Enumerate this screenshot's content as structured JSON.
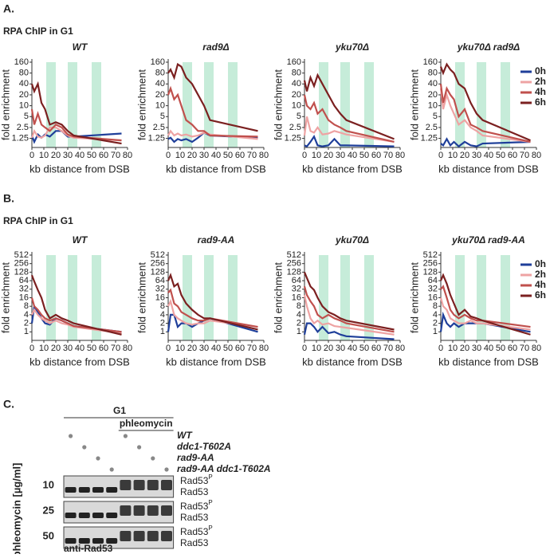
{
  "figure": {
    "panel_a": {
      "label": "A.",
      "heading": "RPA ChIP in G1"
    },
    "panel_b": {
      "label": "B.",
      "heading": "RPA ChIP in G1"
    },
    "panel_c": {
      "label": "C."
    }
  },
  "chart_data": [
    {
      "type": "line",
      "title": "WT",
      "xlabel": "kb distance from DSB",
      "ylabel": "fold enrichment",
      "log_y": true,
      "ylim": [
        0.7,
        160
      ],
      "yticks": [
        1.25,
        2.5,
        5,
        10,
        20,
        40,
        80,
        160
      ],
      "xlim": [
        0,
        80
      ],
      "xticks": [
        0,
        10,
        20,
        30,
        40,
        50,
        60,
        70,
        80
      ],
      "shaded_x": [
        [
          12,
          20
        ],
        [
          30,
          38
        ],
        [
          50,
          58
        ]
      ],
      "x": [
        0,
        2,
        5,
        8,
        11,
        15,
        20,
        25,
        30,
        35,
        75
      ],
      "series": [
        {
          "color": "#1f3f9a",
          "values": [
            1.5,
            1.0,
            1.6,
            1.3,
            1.6,
            1.4,
            2.0,
            2.0,
            1.4,
            1.4,
            1.7
          ]
        },
        {
          "color": "#eea3a3",
          "values": [
            1.3,
            2.0,
            1.4,
            1.3,
            1.5,
            2.5,
            2.5,
            2.0,
            1.5,
            1.3,
            1.1
          ]
        },
        {
          "color": "#c0504d",
          "values": [
            8,
            3,
            6,
            3,
            2.5,
            2.0,
            3.0,
            2.5,
            1.6,
            1.4,
            1.1
          ]
        },
        {
          "color": "#7b2020",
          "values": [
            40,
            25,
            40,
            12,
            8,
            3,
            3.5,
            3,
            2,
            1.5,
            0.9
          ]
        }
      ]
    },
    {
      "type": "line",
      "title": "rad9Δ",
      "xlabel": "kb distance from DSB",
      "ylabel": "fold enrichment",
      "log_y": true,
      "ylim": [
        0.7,
        160
      ],
      "yticks": [
        1.25,
        2.5,
        5,
        10,
        20,
        40,
        80,
        160
      ],
      "xlim": [
        0,
        80
      ],
      "xticks": [
        0,
        10,
        20,
        30,
        40,
        50,
        60,
        70,
        80
      ],
      "shaded_x": [
        [
          12,
          20
        ],
        [
          30,
          38
        ],
        [
          50,
          58
        ]
      ],
      "x": [
        0,
        2,
        5,
        8,
        11,
        15,
        20,
        25,
        30,
        35,
        75
      ],
      "series": [
        {
          "color": "#1f3f9a",
          "values": [
            1.2,
            1.3,
            1.0,
            1.2,
            1.1,
            1.2,
            1.0,
            1.3,
            1.8,
            1.5,
            1.3
          ]
        },
        {
          "color": "#eea3a3",
          "values": [
            1.5,
            2,
            1.5,
            1.7,
            1.5,
            1.6,
            1.4,
            1.5,
            1.8,
            1.6,
            1.2
          ]
        },
        {
          "color": "#c0504d",
          "values": [
            20,
            30,
            15,
            20,
            10,
            4,
            3,
            2,
            2,
            1.5,
            1.4
          ]
        },
        {
          "color": "#7b2020",
          "values": [
            80,
            100,
            60,
            140,
            120,
            60,
            40,
            20,
            10,
            4,
            2
          ]
        }
      ]
    },
    {
      "type": "line",
      "title": "yku70Δ",
      "xlabel": "kb distance from DSB",
      "ylabel": "fold enrichment",
      "log_y": true,
      "ylim": [
        0.7,
        160
      ],
      "yticks": [
        1.25,
        2.5,
        5,
        10,
        20,
        40,
        80,
        160
      ],
      "xlim": [
        0,
        80
      ],
      "xticks": [
        0,
        10,
        20,
        30,
        40,
        50,
        60,
        70,
        80
      ],
      "shaded_x": [
        [
          12,
          20
        ],
        [
          30,
          38
        ],
        [
          50,
          58
        ]
      ],
      "x": [
        0,
        2,
        5,
        8,
        11,
        15,
        20,
        25,
        30,
        35,
        75
      ],
      "series": [
        {
          "color": "#1f3f9a",
          "values": [
            0.8,
            0.75,
            1.0,
            1.4,
            0.8,
            0.75,
            0.8,
            1.2,
            0.8,
            0.8,
            0.75
          ]
        },
        {
          "color": "#eea3a3",
          "values": [
            1.5,
            5,
            2,
            1.8,
            2.5,
            1.6,
            1.7,
            2,
            1.8,
            1.6,
            1.0
          ]
        },
        {
          "color": "#c0504d",
          "values": [
            20,
            10,
            8,
            12,
            6,
            8,
            4,
            3,
            2.5,
            2,
            1.0
          ]
        },
        {
          "color": "#7b2020",
          "values": [
            50,
            25,
            60,
            35,
            70,
            40,
            20,
            10,
            6,
            4,
            1.2
          ]
        }
      ]
    },
    {
      "type": "line",
      "title": "yku70Δ rad9Δ",
      "xlabel": "kb distance from DSB",
      "ylabel": "fold enrichment",
      "log_y": true,
      "ylim": [
        0.7,
        160
      ],
      "yticks": [
        1.25,
        2.5,
        5,
        10,
        20,
        40,
        80,
        160
      ],
      "xlim": [
        0,
        80
      ],
      "xticks": [
        0,
        10,
        20,
        30,
        40,
        50,
        60,
        70,
        80
      ],
      "shaded_x": [
        [
          12,
          20
        ],
        [
          30,
          38
        ],
        [
          50,
          58
        ]
      ],
      "legend": "upper right",
      "x": [
        0,
        2,
        5,
        8,
        11,
        15,
        20,
        25,
        30,
        35,
        75
      ],
      "series": [
        {
          "name": "0h",
          "color": "#1f3f9a",
          "values": [
            0.9,
            0.8,
            1.2,
            0.8,
            1.0,
            0.75,
            1.0,
            0.8,
            0.75,
            0.9,
            1.0
          ]
        },
        {
          "name": "2h",
          "color": "#eea3a3",
          "values": [
            30,
            8,
            20,
            10,
            6,
            3,
            4,
            2.5,
            2,
            1.5,
            1.0
          ]
        },
        {
          "name": "4h",
          "color": "#c0504d",
          "values": [
            40,
            12,
            30,
            20,
            15,
            5,
            8,
            3,
            2.5,
            2,
            1.0
          ]
        },
        {
          "name": "6h",
          "color": "#7b2020",
          "values": [
            120,
            80,
            140,
            100,
            80,
            40,
            30,
            12,
            6,
            4,
            1.1
          ]
        }
      ]
    },
    {
      "type": "line",
      "title": "WT",
      "xlabel": "kb distance from DSB",
      "ylabel": "fold enrichment",
      "log_y": true,
      "ylim": [
        0.5,
        512
      ],
      "yticks": [
        1,
        2,
        4,
        8,
        16,
        32,
        64,
        128,
        256,
        512
      ],
      "xlim": [
        0,
        80
      ],
      "xticks": [
        0,
        10,
        20,
        30,
        40,
        50,
        60,
        70,
        80
      ],
      "shaded_x": [
        [
          12,
          20
        ],
        [
          30,
          38
        ],
        [
          50,
          58
        ]
      ],
      "x": [
        0,
        2,
        5,
        8,
        11,
        15,
        20,
        25,
        30,
        35,
        75
      ],
      "series": [
        {
          "color": "#1f3f9a",
          "values": [
            2,
            8,
            5,
            3,
            2,
            1.8,
            3,
            2.5,
            2,
            1.6,
            1
          ]
        },
        {
          "color": "#eea3a3",
          "values": [
            4,
            6,
            4,
            3,
            2.5,
            2,
            2.5,
            2,
            1.8,
            1.5,
            0.9
          ]
        },
        {
          "color": "#c0504d",
          "values": [
            16,
            8,
            6,
            4,
            3,
            2.5,
            3,
            2.5,
            2,
            1.6,
            1
          ]
        },
        {
          "color": "#7b2020",
          "values": [
            100,
            60,
            30,
            16,
            6,
            3,
            4,
            3,
            2.5,
            2,
            0.8
          ]
        }
      ]
    },
    {
      "type": "line",
      "title": "rad9-AA",
      "xlabel": "kb distance from DSB",
      "ylabel": "fold enrichment",
      "log_y": true,
      "ylim": [
        0.5,
        512
      ],
      "yticks": [
        1,
        2,
        4,
        8,
        16,
        32,
        64,
        128,
        256,
        512
      ],
      "xlim": [
        0,
        80
      ],
      "xticks": [
        0,
        10,
        20,
        30,
        40,
        50,
        60,
        70,
        80
      ],
      "shaded_x": [
        [
          12,
          20
        ],
        [
          30,
          38
        ],
        [
          50,
          58
        ]
      ],
      "x": [
        0,
        2,
        5,
        8,
        11,
        15,
        20,
        25,
        30,
        35,
        75
      ],
      "series": [
        {
          "color": "#1f3f9a",
          "values": [
            1,
            4,
            4,
            1.5,
            2,
            2,
            1.5,
            2,
            2.5,
            3,
            1
          ]
        },
        {
          "color": "#eea3a3",
          "values": [
            8,
            12,
            4,
            3,
            2.5,
            2,
            1.8,
            2,
            2,
            2.5,
            1.5
          ]
        },
        {
          "color": "#c0504d",
          "values": [
            24,
            30,
            10,
            8,
            5,
            4,
            3,
            2.5,
            2.5,
            3,
            1.5
          ]
        },
        {
          "color": "#7b2020",
          "values": [
            64,
            100,
            40,
            50,
            20,
            10,
            6,
            4,
            3,
            3,
            1.2
          ]
        }
      ]
    },
    {
      "type": "line",
      "title": "yku70Δ",
      "xlabel": "kb distance from DSB",
      "ylabel": "fold enrichment",
      "log_y": true,
      "ylim": [
        0.5,
        512
      ],
      "yticks": [
        1,
        2,
        4,
        8,
        16,
        32,
        64,
        128,
        256,
        512
      ],
      "xlim": [
        0,
        80
      ],
      "xticks": [
        0,
        10,
        20,
        30,
        40,
        50,
        60,
        70,
        80
      ],
      "shaded_x": [
        [
          12,
          20
        ],
        [
          30,
          38
        ],
        [
          50,
          58
        ]
      ],
      "x": [
        0,
        2,
        5,
        8,
        11,
        15,
        20,
        25,
        30,
        35,
        75
      ],
      "series": [
        {
          "color": "#1f3f9a",
          "values": [
            0.8,
            2,
            2,
            1.5,
            1,
            1.5,
            0.9,
            1,
            0.8,
            0.7,
            0.55
          ]
        },
        {
          "color": "#eea3a3",
          "values": [
            20,
            8,
            3,
            2,
            2.5,
            1.8,
            2,
            1.6,
            1.5,
            1.4,
            0.8
          ]
        },
        {
          "color": "#c0504d",
          "values": [
            40,
            20,
            12,
            8,
            4,
            3,
            4,
            3,
            2.5,
            2,
            1
          ]
        },
        {
          "color": "#7b2020",
          "values": [
            128,
            80,
            40,
            30,
            16,
            8,
            5,
            4,
            3,
            2.5,
            1.2
          ]
        }
      ]
    },
    {
      "type": "line",
      "title": "yku70Δ rad9-AA",
      "xlabel": "kb distance from DSB",
      "ylabel": "fold enrichment",
      "log_y": true,
      "ylim": [
        0.5,
        512
      ],
      "yticks": [
        1,
        2,
        4,
        8,
        16,
        32,
        64,
        128,
        256,
        512
      ],
      "xlim": [
        0,
        80
      ],
      "xticks": [
        0,
        10,
        20,
        30,
        40,
        50,
        60,
        70,
        80
      ],
      "shaded_x": [
        [
          12,
          20
        ],
        [
          30,
          38
        ],
        [
          50,
          58
        ]
      ],
      "legend": "upper right",
      "x": [
        0,
        2,
        5,
        8,
        11,
        15,
        20,
        25,
        30,
        35,
        75
      ],
      "series": [
        {
          "name": "0h",
          "color": "#1f3f9a",
          "values": [
            1,
            4,
            2,
            1.5,
            2,
            1.5,
            2,
            2,
            2,
            2,
            1
          ]
        },
        {
          "name": "2h",
          "color": "#eea3a3",
          "values": [
            16,
            8,
            6,
            3,
            2.5,
            2,
            2,
            2.5,
            2,
            2,
            1.2
          ]
        },
        {
          "name": "4h",
          "color": "#c0504d",
          "values": [
            32,
            40,
            16,
            6,
            4,
            3,
            4,
            3,
            2.5,
            2.5,
            1.5
          ]
        },
        {
          "name": "6h",
          "color": "#7b2020",
          "values": [
            64,
            100,
            50,
            20,
            10,
            4,
            6,
            3.5,
            3,
            2.5,
            0.8
          ]
        }
      ]
    }
  ],
  "blot": {
    "condition": "G1",
    "treatment": "phleomycin",
    "genotypes": [
      "WT",
      "ddc1-T602A",
      "rad9-AA",
      "rad9-AA ddc1-T602A"
    ],
    "dose_label": "phleomycin [µg/ml]",
    "antibody": "anti-Rad53",
    "rows": [
      {
        "dose": "10",
        "upper": "Rad53",
        "upper_sup": "P",
        "lower": "Rad53"
      },
      {
        "dose": "25",
        "upper": "Rad53",
        "upper_sup": "P",
        "lower": "Rad53"
      },
      {
        "dose": "50",
        "upper": "Rad53",
        "upper_sup": "P",
        "lower": "Rad53"
      }
    ]
  }
}
